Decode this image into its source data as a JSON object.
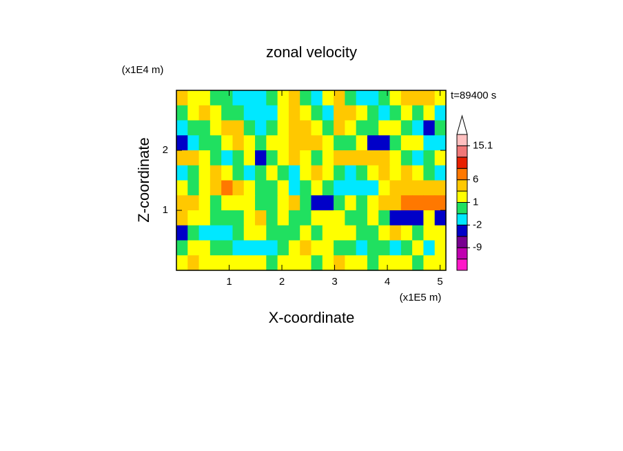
{
  "chart_data": {
    "type": "contour",
    "title": "zonal velocity",
    "time_label": "t=89400 s",
    "x_label": "X-coordinate",
    "y_label": "Z-coordinate",
    "x_unit": "(x1E5 m)",
    "y_unit": "(x1E4 m)",
    "xlim": [
      0,
      5.11
    ],
    "ylim": [
      0,
      3
    ],
    "xticks": [
      1,
      2,
      3,
      4,
      5
    ],
    "yticks": [
      1,
      2
    ],
    "levels": [
      -12,
      -9,
      -5,
      -2,
      -1,
      1,
      3,
      6,
      9,
      12,
      15.1
    ],
    "cticks": [
      -9,
      -2,
      1,
      6,
      15.1
    ],
    "colors": [
      "#ff18c8",
      "#c000b0",
      "#780090",
      "#0000c8",
      "#00e8ff",
      "#20e060",
      "#ffff00",
      "#ffc800",
      "#ff7800",
      "#e82000",
      "#f07878",
      "#ffc0c0",
      "#ffffff"
    ],
    "z": [
      [
        3,
        1,
        2,
        0,
        0,
        -1.5,
        -1.5,
        -1.5,
        0,
        2,
        3,
        0,
        -1.5,
        2,
        3,
        0,
        -1.5,
        -1.5,
        0,
        2,
        3,
        4,
        3,
        2
      ],
      [
        0,
        2,
        4,
        2,
        0,
        0,
        -1.5,
        -1.5,
        -1.5,
        2,
        3,
        2,
        0,
        -1.5,
        4,
        5,
        2,
        0,
        -1.5,
        0,
        2,
        0,
        2,
        -1.5
      ],
      [
        -1.5,
        0,
        0,
        2,
        4,
        3,
        0,
        -1.5,
        0,
        2,
        3,
        4,
        2,
        0,
        3,
        2,
        0,
        0,
        2,
        2,
        0,
        -1.5,
        -3,
        0
      ],
      [
        -3,
        -1.5,
        0,
        0,
        2,
        3,
        2,
        0,
        2,
        2,
        4,
        4,
        3,
        2,
        0,
        0,
        2,
        -3,
        -3,
        0,
        2,
        2,
        -1.5,
        -1.5
      ],
      [
        3,
        4,
        2,
        0,
        -1.5,
        0,
        2,
        -3,
        0,
        2,
        3,
        2,
        0,
        2,
        3,
        4,
        5,
        4,
        3,
        2,
        0,
        -1.5,
        0,
        2
      ],
      [
        -1.5,
        0,
        2,
        3,
        2,
        0,
        -1.5,
        0,
        2,
        0,
        -1.5,
        2,
        3,
        2,
        0,
        -1.5,
        0,
        2,
        3,
        2,
        4,
        2,
        0,
        -1.5
      ],
      [
        2,
        0,
        2,
        4,
        7,
        4,
        2,
        0,
        0,
        2,
        -1.5,
        0,
        2,
        0,
        -1.5,
        -1.5,
        -1.5,
        -1.5,
        2,
        4,
        5,
        4,
        4,
        3
      ],
      [
        4,
        5,
        2,
        0,
        2,
        2,
        2,
        0,
        0,
        2,
        3,
        0,
        -3,
        -3,
        0,
        2,
        0,
        2,
        3,
        4,
        7,
        7,
        7,
        7
      ],
      [
        3,
        2,
        2,
        0,
        0,
        0,
        2,
        3,
        0,
        2,
        0,
        0,
        2,
        2,
        2,
        0,
        0,
        2,
        0,
        -3,
        -3,
        -3,
        2,
        -3
      ],
      [
        -3,
        0,
        -1.5,
        -1.5,
        -1.5,
        0,
        2,
        2,
        0,
        0,
        0,
        2,
        0,
        2,
        2,
        2,
        0,
        0,
        2,
        4,
        2,
        0,
        2,
        2
      ],
      [
        0,
        2,
        2,
        0,
        0,
        -1.5,
        -1.5,
        -1.5,
        -1.5,
        0,
        2,
        3,
        2,
        2,
        0,
        0,
        -1.5,
        0,
        0,
        -1.5,
        0,
        2,
        -1.5,
        2
      ],
      [
        2,
        3,
        2,
        2,
        2,
        2,
        2,
        2,
        0,
        2,
        2,
        2,
        0,
        2,
        3,
        2,
        2,
        0,
        2,
        2,
        2,
        0,
        2,
        2
      ]
    ]
  }
}
